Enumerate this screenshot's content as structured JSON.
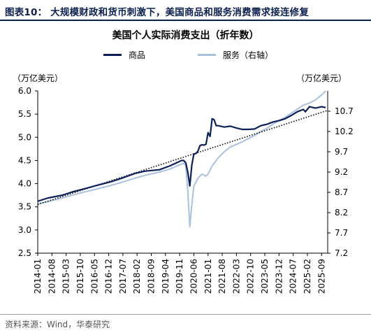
{
  "page": {
    "heading": "图表10：  大规模财政和货币刺激下，美国商品和服务消费需求接连修复",
    "source": "资料来源：Wind，华泰研究"
  },
  "chart_data": {
    "type": "line",
    "title": "美国个人实际消费支出（折年数）",
    "left_unit": "（万亿美元）",
    "right_unit": "（万亿美元）",
    "legend_position": "top-center",
    "grid": false,
    "x_tick_labels": [
      "2014-01",
      "2014-08",
      "2015-03",
      "2015-10",
      "2016-05",
      "2016-12",
      "2017-07",
      "2018-02",
      "2018-09",
      "2019-04",
      "2019-11",
      "2020-06",
      "2021-01",
      "2021-08",
      "2022-03",
      "2022-10",
      "2023-05",
      "2023-12",
      "2024-07",
      "2025-02",
      "2025-09"
    ],
    "x_range": [
      "2014-01",
      "2025-12"
    ],
    "y_left": {
      "min": 2.5,
      "max": 6.0,
      "step": 0.5,
      "ticks": [
        "2.5",
        "3.0",
        "3.5",
        "4.0",
        "4.5",
        "5.0",
        "5.5",
        "6.0"
      ]
    },
    "y_right": {
      "min": 7.2,
      "max": 11.2,
      "step": 0.5,
      "ticks": [
        "7.2",
        "7.7",
        "8.2",
        "8.7",
        "9.2",
        "9.7",
        "10.2",
        "10.7"
      ]
    },
    "series": [
      {
        "name": "商品",
        "axis": "left",
        "color": "#0d2158",
        "points": [
          [
            "2014-01",
            3.62
          ],
          [
            "2014-06",
            3.69
          ],
          [
            "2015-01",
            3.75
          ],
          [
            "2015-06",
            3.82
          ],
          [
            "2016-01",
            3.9
          ],
          [
            "2016-06",
            3.96
          ],
          [
            "2017-01",
            4.04
          ],
          [
            "2017-06",
            4.11
          ],
          [
            "2018-01",
            4.22
          ],
          [
            "2018-06",
            4.27
          ],
          [
            "2019-01",
            4.3
          ],
          [
            "2019-06",
            4.38
          ],
          [
            "2019-12",
            4.5
          ],
          [
            "2020-01",
            4.5
          ],
          [
            "2020-02",
            4.45
          ],
          [
            "2020-03",
            4.25
          ],
          [
            "2020-04",
            3.95
          ],
          [
            "2020-05",
            4.4
          ],
          [
            "2020-06",
            4.64
          ],
          [
            "2020-07",
            4.65
          ],
          [
            "2020-08",
            4.7
          ],
          [
            "2020-09",
            4.82
          ],
          [
            "2020-10",
            4.84
          ],
          [
            "2020-11",
            4.83
          ],
          [
            "2020-12",
            4.85
          ],
          [
            "2021-01",
            5.1
          ],
          [
            "2021-02",
            5.02
          ],
          [
            "2021-03",
            5.4
          ],
          [
            "2021-04",
            5.38
          ],
          [
            "2021-05",
            5.25
          ],
          [
            "2021-06",
            5.25
          ],
          [
            "2021-09",
            5.22
          ],
          [
            "2021-12",
            5.24
          ],
          [
            "2022-03",
            5.2
          ],
          [
            "2022-06",
            5.17
          ],
          [
            "2022-09",
            5.17
          ],
          [
            "2022-12",
            5.18
          ],
          [
            "2023-03",
            5.25
          ],
          [
            "2023-06",
            5.28
          ],
          [
            "2023-09",
            5.33
          ],
          [
            "2023-12",
            5.36
          ],
          [
            "2024-03",
            5.4
          ],
          [
            "2024-06",
            5.47
          ],
          [
            "2024-09",
            5.55
          ],
          [
            "2024-12",
            5.6
          ],
          [
            "2025-01",
            5.55
          ],
          [
            "2025-03",
            5.66
          ],
          [
            "2025-06",
            5.63
          ],
          [
            "2025-09",
            5.66
          ],
          [
            "2025-11",
            5.64
          ]
        ]
      },
      {
        "name": "服务（右轴）",
        "axis": "right",
        "color": "#a9c1dd",
        "points": [
          [
            "2014-01",
            8.42
          ],
          [
            "2014-06",
            8.47
          ],
          [
            "2015-01",
            8.56
          ],
          [
            "2015-06",
            8.63
          ],
          [
            "2016-01",
            8.72
          ],
          [
            "2016-06",
            8.78
          ],
          [
            "2017-01",
            8.87
          ],
          [
            "2017-06",
            8.94
          ],
          [
            "2018-01",
            9.05
          ],
          [
            "2018-06",
            9.12
          ],
          [
            "2019-01",
            9.2
          ],
          [
            "2019-06",
            9.27
          ],
          [
            "2019-12",
            9.4
          ],
          [
            "2020-01",
            9.42
          ],
          [
            "2020-02",
            9.36
          ],
          [
            "2020-03",
            8.75
          ],
          [
            "2020-04",
            7.85
          ],
          [
            "2020-05",
            8.4
          ],
          [
            "2020-06",
            8.85
          ],
          [
            "2020-07",
            8.95
          ],
          [
            "2020-08",
            9.05
          ],
          [
            "2020-09",
            9.1
          ],
          [
            "2020-10",
            9.15
          ],
          [
            "2020-11",
            9.12
          ],
          [
            "2020-12",
            9.1
          ],
          [
            "2021-01",
            9.15
          ],
          [
            "2021-03",
            9.35
          ],
          [
            "2021-06",
            9.55
          ],
          [
            "2021-09",
            9.7
          ],
          [
            "2021-12",
            9.82
          ],
          [
            "2022-03",
            9.88
          ],
          [
            "2022-06",
            9.95
          ],
          [
            "2022-09",
            10.03
          ],
          [
            "2022-12",
            10.1
          ],
          [
            "2023-03",
            10.2
          ],
          [
            "2023-06",
            10.28
          ],
          [
            "2023-09",
            10.38
          ],
          [
            "2023-12",
            10.47
          ],
          [
            "2024-03",
            10.55
          ],
          [
            "2024-06",
            10.65
          ],
          [
            "2024-09",
            10.75
          ],
          [
            "2024-12",
            10.85
          ],
          [
            "2025-03",
            10.9
          ],
          [
            "2025-06",
            10.98
          ],
          [
            "2025-09",
            11.1
          ],
          [
            "2025-11",
            11.2
          ]
        ]
      },
      {
        "name": "",
        "axis": "left",
        "style": "dotted",
        "color": "#000000",
        "points": [
          [
            "2014-01",
            3.55
          ],
          [
            "2025-12",
            5.58
          ]
        ]
      }
    ]
  }
}
